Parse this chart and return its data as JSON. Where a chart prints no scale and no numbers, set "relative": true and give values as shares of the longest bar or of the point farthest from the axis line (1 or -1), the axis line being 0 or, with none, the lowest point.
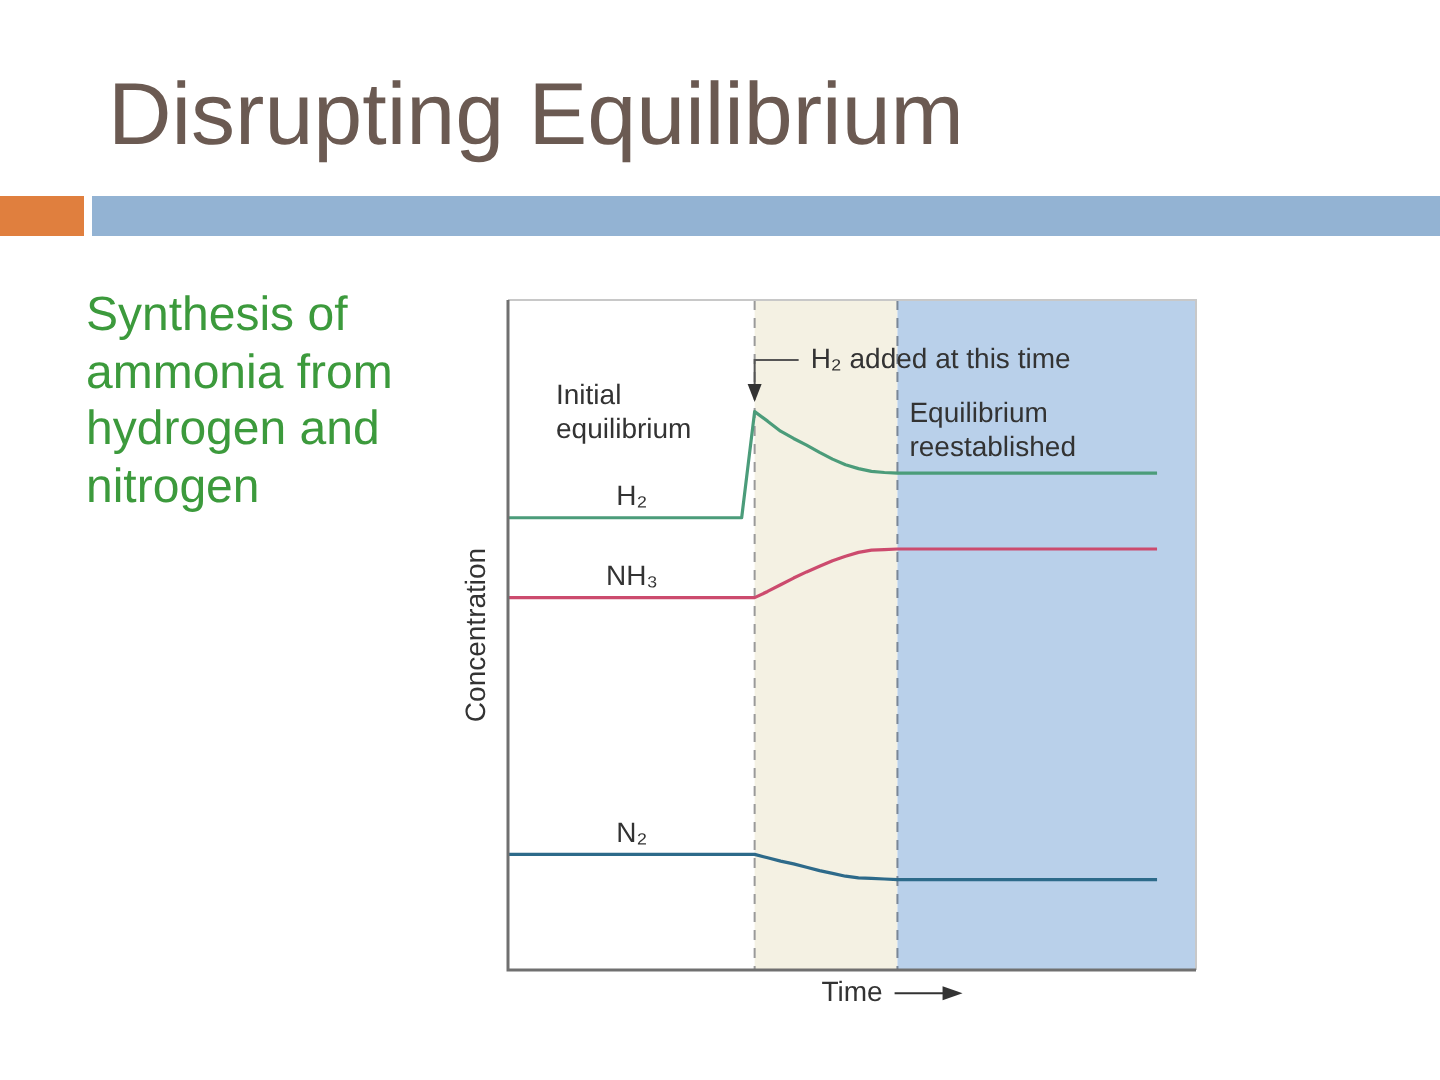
{
  "chart_data": {
    "type": "line",
    "title": "Disrupting Equilibrium",
    "subtitle": "Synthesis of ammonia from hydrogen and nitrogen",
    "xlabel": "Time",
    "ylabel": "Concentration",
    "relative": true,
    "categories": [
      null,
      null,
      null,
      null,
      null,
      null,
      null,
      null,
      null,
      null,
      null,
      null,
      null,
      null,
      null,
      null,
      null,
      null,
      null,
      null,
      null,
      null,
      null,
      null,
      null,
      null,
      null,
      null,
      null,
      null,
      null,
      null,
      null,
      null,
      null,
      null,
      null,
      null,
      null,
      null,
      null,
      null,
      null,
      null,
      null,
      null,
      null,
      null,
      null,
      null,
      null,
      null,
      null,
      null
    ],
    "series": [
      {
        "name": "H₂",
        "color": "#4b9c7a",
        "values": [
          0.81,
          0.81,
          0.81,
          0.81,
          0.81,
          0.81,
          0.81,
          0.81,
          0.81,
          0.81,
          0.81,
          0.81,
          0.81,
          0.81,
          0.81,
          0.81,
          0.81,
          0.81,
          0.81,
          1,
          0.983,
          0.965,
          0.952,
          0.94,
          0.927,
          0.915,
          0.905,
          0.898,
          0.893,
          0.891,
          0.89,
          0.89,
          0.89,
          0.89,
          0.89,
          0.89,
          0.89,
          0.89,
          0.89,
          0.89,
          0.89,
          0.89,
          0.89,
          0.89,
          0.89,
          0.89,
          0.89,
          0.89,
          0.89,
          0.89,
          0.89,
          null,
          null,
          null
        ]
      },
      {
        "name": "NH₃",
        "color": "#cc4b6e",
        "values": [
          0.667,
          0.667,
          0.667,
          0.667,
          0.667,
          0.667,
          0.667,
          0.667,
          0.667,
          0.667,
          0.667,
          0.667,
          0.667,
          0.667,
          0.667,
          0.667,
          0.667,
          0.667,
          0.667,
          0.667,
          0.678,
          0.69,
          0.702,
          0.713,
          0.723,
          0.733,
          0.741,
          0.748,
          0.752,
          0.753,
          0.754,
          0.754,
          0.754,
          0.754,
          0.754,
          0.754,
          0.754,
          0.754,
          0.754,
          0.754,
          0.754,
          0.754,
          0.754,
          0.754,
          0.754,
          0.754,
          0.754,
          0.754,
          0.754,
          0.754,
          0.754,
          null,
          null,
          null
        ]
      },
      {
        "name": "N₂",
        "color": "#2d6a8a",
        "values": [
          0.207,
          0.207,
          0.207,
          0.207,
          0.207,
          0.207,
          0.207,
          0.207,
          0.207,
          0.207,
          0.207,
          0.207,
          0.207,
          0.207,
          0.207,
          0.207,
          0.207,
          0.207,
          0.207,
          0.207,
          0.201,
          0.195,
          0.19,
          0.184,
          0.178,
          0.173,
          0.168,
          0.165,
          0.164,
          0.163,
          0.162,
          0.162,
          0.162,
          0.162,
          0.162,
          0.162,
          0.162,
          0.162,
          0.162,
          0.162,
          0.162,
          0.162,
          0.162,
          0.162,
          0.162,
          0.162,
          0.162,
          0.162,
          0.162,
          0.162,
          0.162,
          null,
          null,
          null
        ]
      }
    ],
    "annotations": [
      "Initial equilibrium",
      "H₂ added at this time",
      "Equilibrium reestablished"
    ]
  }
}
